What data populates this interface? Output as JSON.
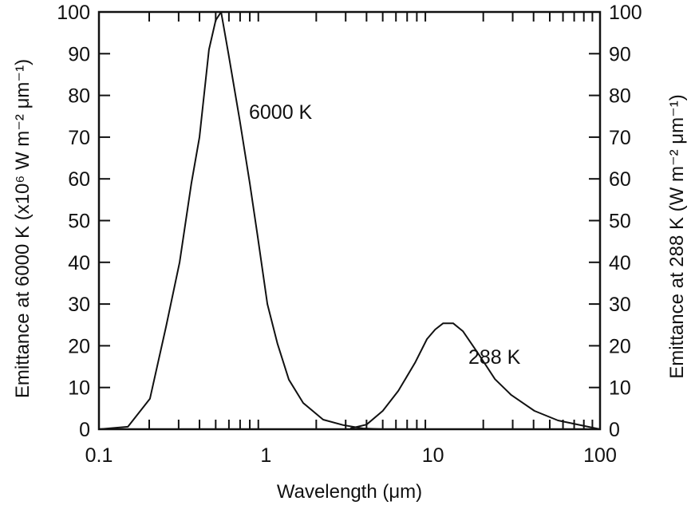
{
  "chart_data": {
    "type": "line",
    "title": "",
    "xlabel": "Wavelength (μm)",
    "ylabel_left": "Emittance at 6000 K (x10⁶ W m⁻² μm⁻¹)",
    "ylabel_right": "Emittance at 288 K (W m⁻² μm⁻¹)",
    "xscale": "log",
    "xlim": [
      0.1,
      100
    ],
    "ylim": [
      0,
      100
    ],
    "x_ticks": [
      0.1,
      1,
      10,
      100
    ],
    "x_tick_labels": [
      "0.1",
      "1",
      "10",
      "100"
    ],
    "y_ticks": [
      0,
      10,
      20,
      30,
      40,
      50,
      60,
      70,
      80,
      90,
      100
    ],
    "y_tick_labels": [
      "0",
      "10",
      "20",
      "30",
      "40",
      "50",
      "60",
      "70",
      "80",
      "90",
      "100"
    ],
    "grid": false,
    "series": [
      {
        "name": "6000 K",
        "label": "6000 K",
        "x": [
          0.1,
          0.149,
          0.202,
          0.252,
          0.304,
          0.358,
          0.4,
          0.456,
          0.5,
          0.539,
          0.596,
          0.697,
          0.8,
          0.89,
          1.02,
          1.17,
          1.37,
          1.67,
          2.2,
          2.9,
          3.8,
          5.0
        ],
        "y": [
          0,
          0.6,
          7.3,
          24.5,
          40,
          59,
          70,
          91,
          98,
          100,
          90,
          74,
          59,
          46.5,
          30,
          20.6,
          11.9,
          6.3,
          2.3,
          1.0,
          0.2,
          0
        ]
      },
      {
        "name": "288 K",
        "label": "288 K",
        "x": [
          3.2,
          4.0,
          5.0,
          6.2,
          7.8,
          9.2,
          10.3,
          11.5,
          13.2,
          15.1,
          18.9,
          23.5,
          29.4,
          40.5,
          56,
          100
        ],
        "y": [
          0.2,
          1.1,
          4.4,
          9.2,
          15.9,
          21.6,
          23.9,
          25.4,
          25.4,
          23.5,
          17.8,
          12,
          8.2,
          4.4,
          2.1,
          0
        ]
      }
    ]
  },
  "colors": {
    "line": "#111111",
    "axis": "#111111",
    "background": "#ffffff"
  }
}
